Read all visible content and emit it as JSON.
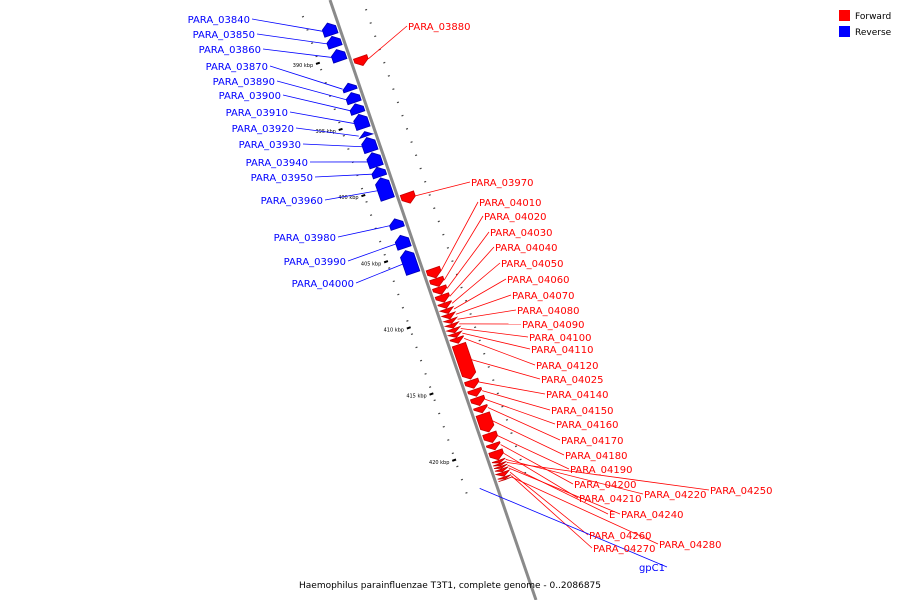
{
  "caption": "Haemophilus parainfluenzae T3T1, complete genome - 0..2086875",
  "legend": [
    {
      "label": "Forward",
      "color": "#ff0000"
    },
    {
      "label": "Reverse",
      "color": "#0000ff"
    }
  ],
  "colors": {
    "forward": "#ff0000",
    "forward_dark": "#c80000",
    "reverse": "#0000ff",
    "reverse_dark": "#0000b4",
    "backbone": "#8a8a8a",
    "tick": "#000000"
  },
  "scale_labels": [
    "390 kbp",
    "395 kbp",
    "400 kbp",
    "405 kbp",
    "410 kbp",
    "415 kbp",
    "420 kbp"
  ],
  "chart_data": {
    "type": "genome_map",
    "range_bp": [
      387500,
      422500
    ],
    "ticks_kbp": [
      390,
      395,
      400,
      405,
      410,
      415,
      420
    ],
    "genes": [
      {
        "name": "PARA_03840",
        "strand": "reverse",
        "start": 387500,
        "end": 388400
      },
      {
        "name": "PARA_03850",
        "strand": "reverse",
        "start": 388500,
        "end": 389300
      },
      {
        "name": "PARA_03860",
        "strand": "reverse",
        "start": 389500,
        "end": 390350
      },
      {
        "name": "PARA_03870",
        "strand": "reverse",
        "start": 392050,
        "end": 392600
      },
      {
        "name": "PARA_03880",
        "strand": "forward",
        "start": 390550,
        "end": 391200
      },
      {
        "name": "PARA_03890",
        "strand": "reverse",
        "start": 392750,
        "end": 393500
      },
      {
        "name": "PARA_03900",
        "strand": "reverse",
        "start": 393600,
        "end": 394300
      },
      {
        "name": "PARA_03910",
        "strand": "reverse",
        "start": 394400,
        "end": 395450
      },
      {
        "name": "PARA_03920",
        "strand": "reverse",
        "start": 395700,
        "end": 396050
      },
      {
        "name": "PARA_03930",
        "strand": "reverse",
        "start": 396150,
        "end": 397200
      },
      {
        "name": "PARA_03940",
        "strand": "reverse",
        "start": 397300,
        "end": 398350
      },
      {
        "name": "PARA_03950",
        "strand": "reverse",
        "start": 398400,
        "end": 399100
      },
      {
        "name": "PARA_03960",
        "strand": "reverse",
        "start": 399200,
        "end": 400800
      },
      {
        "name": "PARA_03970",
        "strand": "forward",
        "start": 400850,
        "end": 401600
      },
      {
        "name": "PARA_03980",
        "strand": "reverse",
        "start": 402300,
        "end": 403000
      },
      {
        "name": "PARA_03990",
        "strand": "reverse",
        "start": 403550,
        "end": 404500
      },
      {
        "name": "PARA_04000",
        "strand": "reverse",
        "start": 404700,
        "end": 406400
      },
      {
        "name": "PARA_04010",
        "strand": "forward",
        "start": 406550,
        "end": 407250
      },
      {
        "name": "PARA_04020",
        "strand": "forward",
        "start": 407300,
        "end": 407900
      },
      {
        "name": "PARA_04030",
        "strand": "forward",
        "start": 407950,
        "end": 408500
      },
      {
        "name": "PARA_04040",
        "strand": "forward",
        "start": 408550,
        "end": 409100
      },
      {
        "name": "PARA_04050",
        "strand": "forward",
        "start": 409150,
        "end": 409550
      },
      {
        "name": "PARA_04060",
        "strand": "forward",
        "start": 409600,
        "end": 409950
      },
      {
        "name": "PARA_04070",
        "strand": "forward",
        "start": 410000,
        "end": 410350
      },
      {
        "name": "PARA_04080",
        "strand": "forward",
        "start": 410400,
        "end": 410700
      },
      {
        "name": "PARA_04090",
        "strand": "forward",
        "start": 410750,
        "end": 411050
      },
      {
        "name": "PARA_04100",
        "strand": "forward",
        "start": 411100,
        "end": 411400
      },
      {
        "name": "PARA_04110",
        "strand": "forward",
        "start": 411450,
        "end": 411750
      },
      {
        "name": "PARA_04120",
        "strand": "forward",
        "start": 411800,
        "end": 412200
      },
      {
        "name": "PARA_04025",
        "strand": "forward",
        "start": 412300,
        "end": 414900
      },
      {
        "name": "PARA_04140",
        "strand": "forward",
        "start": 415000,
        "end": 415600
      },
      {
        "name": "PARA_04150",
        "strand": "forward",
        "start": 415700,
        "end": 416200
      },
      {
        "name": "PARA_04160",
        "strand": "forward",
        "start": 416300,
        "end": 416900
      },
      {
        "name": "PARA_04170",
        "strand": "forward",
        "start": 417000,
        "end": 417450
      },
      {
        "name": "PARA_04180",
        "strand": "forward",
        "start": 417550,
        "end": 418900
      },
      {
        "name": "PARA_04190",
        "strand": "forward",
        "start": 419000,
        "end": 419700
      },
      {
        "name": "PARA_04200",
        "strand": "forward",
        "start": 419800,
        "end": 420250
      },
      {
        "name": "PARA_04210",
        "strand": "forward",
        "start": 420350,
        "end": 421000
      },
      {
        "name": "PARA_04220",
        "strand": "forward",
        "start": 421050,
        "end": 421250
      },
      {
        "name": "PARA_04250",
        "strand": "forward",
        "start": 421300,
        "end": 421450
      },
      {
        "name": "E",
        "strand": "forward",
        "start": 421500,
        "end": 421650
      },
      {
        "name": "PARA_04240",
        "strand": "forward",
        "start": 421700,
        "end": 421900
      },
      {
        "name": "PARA_04260",
        "strand": "forward",
        "start": 421950,
        "end": 422250
      },
      {
        "name": "PARA_04270",
        "strand": "forward",
        "start": 422300,
        "end": 422450
      },
      {
        "name": "PARA_04280",
        "strand": "forward",
        "start": 422480,
        "end": 422500
      },
      {
        "name": "gpC1",
        "strand": "reverse",
        "start": 422500,
        "end": 422500
      }
    ]
  }
}
